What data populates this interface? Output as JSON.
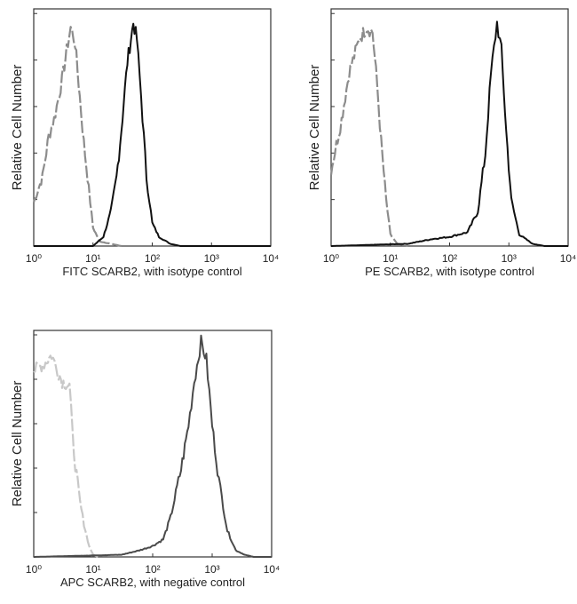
{
  "chart_data": [
    {
      "type": "line",
      "xlabel": "FITC  SCARB2,  with isotype control",
      "ylabel": "Relative Cell Number",
      "xscale": "log",
      "xlim": [
        1,
        10000
      ],
      "ylim": [
        0,
        100
      ],
      "x_tick_labels": [
        "10⁰",
        "10¹",
        "10²",
        "10³",
        "10⁴"
      ],
      "series": [
        {
          "role": "control",
          "color": "#8c8c8c",
          "style": "dashed",
          "x": [
            1,
            1.4,
            1.8,
            2.2,
            3,
            3.6,
            4.2,
            5,
            6,
            7,
            8.5,
            10,
            13,
            20,
            30
          ],
          "y": [
            19,
            30,
            48,
            55,
            72,
            85,
            95,
            88,
            65,
            45,
            25,
            8,
            2,
            1,
            0
          ]
        },
        {
          "role": "sample",
          "color": "#111111",
          "style": "solid",
          "x": [
            1,
            10,
            15,
            20,
            25,
            30,
            38,
            48,
            55,
            65,
            80,
            100,
            130,
            200,
            300,
            10000
          ],
          "y": [
            0,
            0,
            4,
            15,
            30,
            50,
            80,
            97,
            90,
            65,
            30,
            10,
            4,
            1,
            0,
            0
          ]
        }
      ]
    },
    {
      "type": "line",
      "xlabel": "PE  SCARB2,  with isotype control",
      "ylabel": "Relative Cell Number",
      "xscale": "log",
      "xlim": [
        1,
        10000
      ],
      "ylim": [
        0,
        100
      ],
      "x_tick_labels": [
        "10⁰",
        "10¹",
        "10²",
        "10³",
        "10⁴"
      ],
      "series": [
        {
          "role": "control",
          "color": "#8c8c8c",
          "style": "dashed",
          "x": [
            1,
            1.5,
            2,
            3,
            4,
            5,
            6,
            7,
            8.5,
            10,
            13,
            20
          ],
          "y": [
            33,
            55,
            75,
            90,
            95,
            93,
            70,
            45,
            20,
            5,
            1,
            0
          ]
        },
        {
          "role": "sample",
          "color": "#111111",
          "style": "solid",
          "x": [
            1,
            20,
            50,
            100,
            200,
            300,
            400,
            500,
            630,
            750,
            900,
            1100,
            1500,
            2500,
            4000,
            10000
          ],
          "y": [
            0,
            1,
            3,
            4,
            6,
            15,
            40,
            75,
            97,
            85,
            50,
            20,
            5,
            1,
            0,
            0
          ]
        }
      ]
    },
    {
      "type": "line",
      "xlabel": "APC SCARB2, with negative control",
      "ylabel": "Relative Cell Number",
      "xscale": "log",
      "xlim": [
        1,
        10000
      ],
      "ylim": [
        0,
        100
      ],
      "x_tick_labels": [
        "10⁰",
        "10¹",
        "10²",
        "10³",
        "10⁴"
      ],
      "series": [
        {
          "role": "control",
          "color": "#c8c8c8",
          "style": "dashed",
          "x": [
            1,
            1.5,
            2,
            2.5,
            3,
            4,
            4.5,
            5,
            6,
            7,
            8.5,
            10,
            12
          ],
          "y": [
            85,
            88,
            92,
            85,
            80,
            78,
            55,
            42,
            25,
            15,
            5,
            1,
            0
          ]
        },
        {
          "role": "sample",
          "color": "#4a4a4a",
          "style": "solid",
          "x": [
            1,
            30,
            60,
            100,
            150,
            200,
            300,
            400,
            500,
            650,
            800,
            1000,
            1300,
            1800,
            2500,
            3500,
            5000,
            10000
          ],
          "y": [
            0,
            1,
            3,
            5,
            8,
            18,
            40,
            60,
            80,
            98,
            90,
            60,
            35,
            12,
            3,
            1,
            0,
            0
          ]
        }
      ]
    }
  ]
}
